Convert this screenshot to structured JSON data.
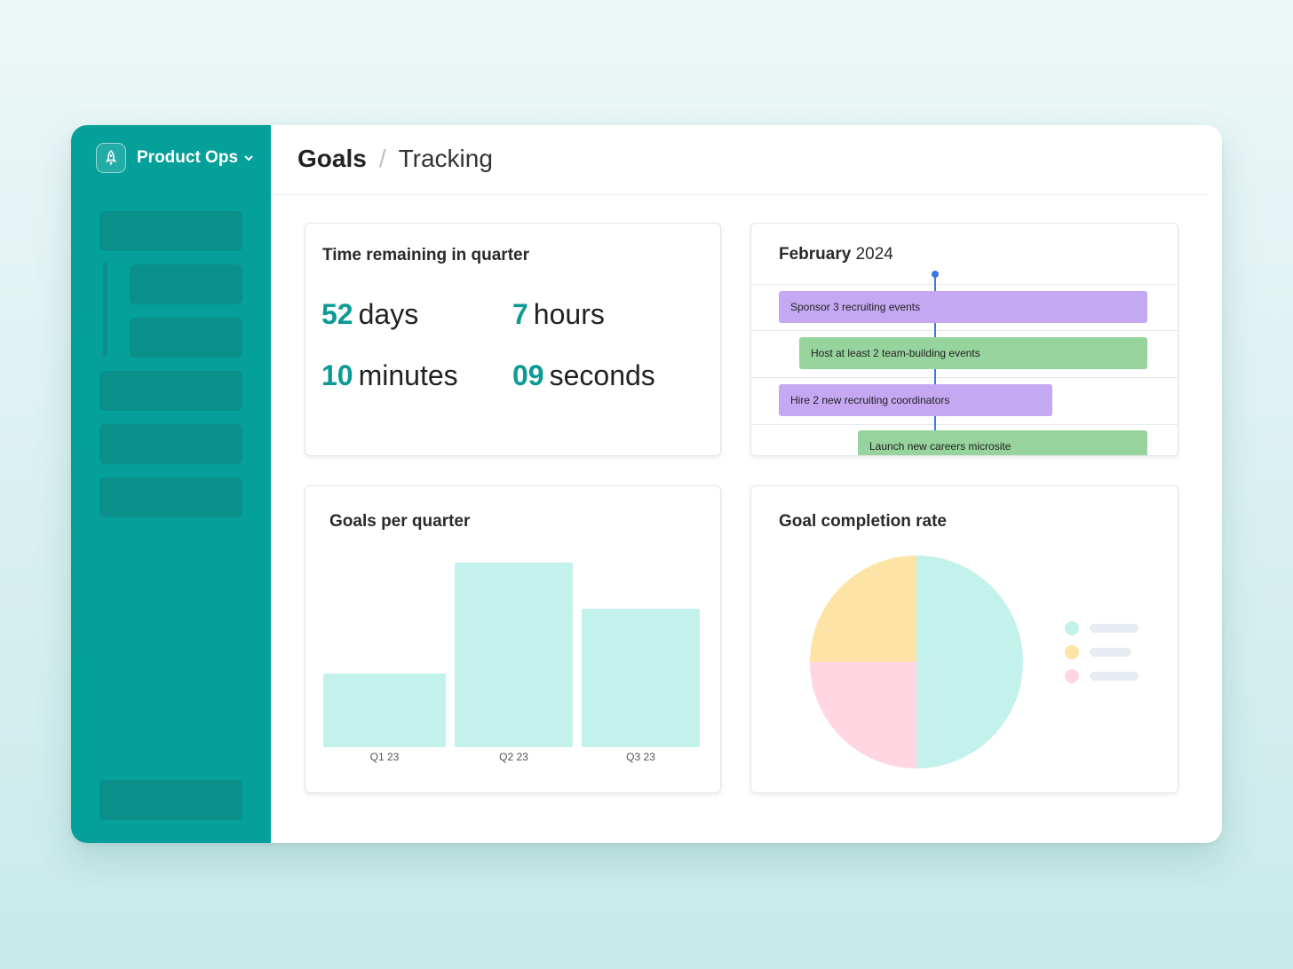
{
  "workspace": {
    "name": "Product Ops",
    "icon": "rocket-icon"
  },
  "breadcrumb": {
    "section": "Goals",
    "separator": "/",
    "page": "Tracking"
  },
  "time_remaining": {
    "title": "Time remaining in quarter",
    "days": {
      "value": "52",
      "unit": "days"
    },
    "hours": {
      "value": "7",
      "unit": "hours"
    },
    "minutes": {
      "value": "10",
      "unit": "minutes"
    },
    "seconds": {
      "value": "09",
      "unit": "seconds"
    }
  },
  "timeline": {
    "month": "February",
    "year": "2024",
    "items": [
      {
        "label": "Sponsor 3 recruiting events",
        "color": "#c4a8f2"
      },
      {
        "label": "Host at least 2 team-building events",
        "color": "#97d39c"
      },
      {
        "label": "Hire 2 new recruiting coordinators",
        "color": "#c4a8f2"
      },
      {
        "label": "Launch new careers microsite",
        "color": "#97d39c"
      }
    ]
  },
  "goals_chart": {
    "title": "Goals per quarter"
  },
  "completion_chart": {
    "title": "Goal completion rate"
  },
  "chart_data": [
    {
      "type": "bar",
      "title": "Goals per quarter",
      "categories": [
        "Q1 23",
        "Q2 23",
        "Q3 23"
      ],
      "values": [
        4,
        10,
        7.5
      ],
      "ylim": [
        0,
        10
      ],
      "xlabel": "",
      "ylabel": "",
      "grid": false,
      "color": "#c3f1ec"
    },
    {
      "type": "pie",
      "title": "Goal completion rate",
      "slices": [
        {
          "name": "",
          "value": 50,
          "color": "#c3f1ec"
        },
        {
          "name": "",
          "value": 25,
          "color": "#ffd6e2"
        },
        {
          "name": "",
          "value": 25,
          "color": "#fde4a6"
        }
      ],
      "legend": "right"
    }
  ]
}
